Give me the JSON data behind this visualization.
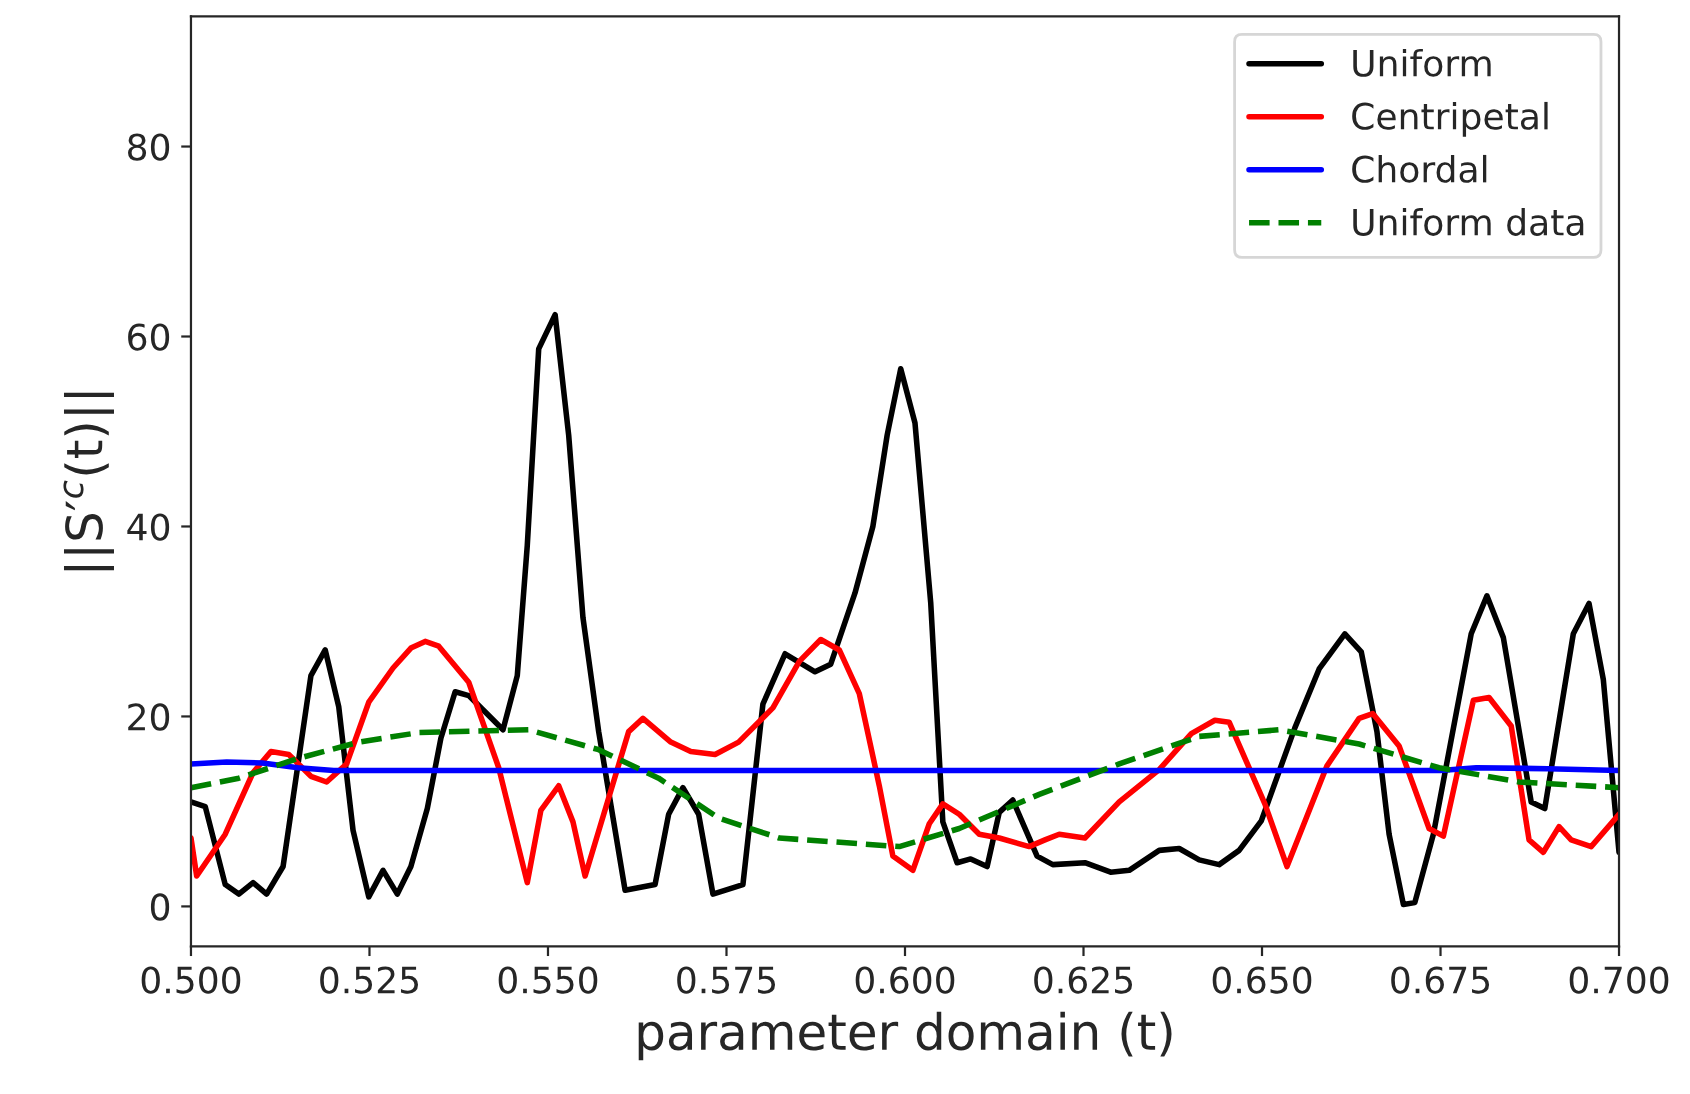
{
  "chart_data": {
    "type": "line",
    "xlabel": "parameter domain (t)",
    "ylabel": "||S′$^{c}$(t)||",
    "xlim": [
      0.5,
      0.7
    ],
    "ylim": [
      -4.2,
      93.7
    ],
    "xticks": [
      {
        "value": 0.5,
        "label": "0.500"
      },
      {
        "value": 0.525,
        "label": "0.525"
      },
      {
        "value": 0.55,
        "label": "0.550"
      },
      {
        "value": 0.575,
        "label": "0.575"
      },
      {
        "value": 0.6,
        "label": "0.600"
      },
      {
        "value": 0.625,
        "label": "0.625"
      },
      {
        "value": 0.65,
        "label": "0.650"
      },
      {
        "value": 0.675,
        "label": "0.675"
      },
      {
        "value": 0.7,
        "label": "0.700"
      }
    ],
    "yticks": [
      0,
      20,
      40,
      60,
      80
    ],
    "legend": "top right",
    "grid": false,
    "series": [
      {
        "name": "Uniform",
        "color": "#000000",
        "line_style": "solid",
        "x": [
          0.5,
          0.502,
          0.5048,
          0.5067,
          0.5087,
          0.5106,
          0.5129,
          0.5168,
          0.5188,
          0.5207,
          0.5227,
          0.5249,
          0.5269,
          0.5289,
          0.5308,
          0.5331,
          0.535,
          0.537,
          0.5389,
          0.5437,
          0.5457,
          0.5471,
          0.5487,
          0.551,
          0.5529,
          0.5549,
          0.5571,
          0.5608,
          0.565,
          0.5669,
          0.5689,
          0.5711,
          0.5731,
          0.5773,
          0.5801,
          0.5832,
          0.5874,
          0.5896,
          0.593,
          0.5955,
          0.5975,
          0.5994,
          0.6014,
          0.6036,
          0.6053,
          0.6073,
          0.6092,
          0.6115,
          0.6132,
          0.6151,
          0.6185,
          0.6207,
          0.6252,
          0.6288,
          0.6314,
          0.6356,
          0.6384,
          0.6412,
          0.644,
          0.6468,
          0.6499,
          0.6546,
          0.658,
          0.6616,
          0.6639,
          0.6661,
          0.6678,
          0.6698,
          0.6714,
          0.674,
          0.6793,
          0.6815,
          0.6838,
          0.6877,
          0.6896,
          0.6936,
          0.6958,
          0.6978,
          0.7
        ],
        "values": [
          11,
          10.5,
          2.3,
          1.3,
          2.5,
          1.3,
          4.2,
          24.3,
          27,
          21,
          8,
          1,
          3.8,
          1.3,
          4.2,
          10.3,
          17.7,
          22.6,
          22.2,
          18.6,
          24.3,
          38,
          58.7,
          62.3,
          49.6,
          30.4,
          18.4,
          1.7,
          2.3,
          9.7,
          12.5,
          9.7,
          1.3,
          2.3,
          21.3,
          26.6,
          24.7,
          25.5,
          33,
          40,
          49.6,
          56.6,
          50.9,
          32,
          8.9,
          4.6,
          5,
          4.2,
          9.9,
          11.2,
          5.3,
          4.4,
          4.6,
          3.6,
          3.8,
          5.9,
          6.1,
          4.9,
          4.4,
          5.9,
          9,
          18.8,
          25,
          28.7,
          26.8,
          18.4,
          7.6,
          0.2,
          0.4,
          7.6,
          28.7,
          32.7,
          28.3,
          11,
          10.3,
          28.7,
          31.9,
          23.9,
          5.7
        ]
      },
      {
        "name": "Centripetal",
        "color": "#ff0000",
        "line_style": "solid",
        "x": [
          0.5,
          0.5008,
          0.5048,
          0.5087,
          0.5112,
          0.5137,
          0.5168,
          0.519,
          0.5218,
          0.5249,
          0.5283,
          0.5308,
          0.5328,
          0.5347,
          0.5389,
          0.5431,
          0.5471,
          0.549,
          0.5515,
          0.5535,
          0.5552,
          0.5613,
          0.5633,
          0.5672,
          0.57,
          0.5734,
          0.5767,
          0.5815,
          0.5852,
          0.5882,
          0.5908,
          0.5936,
          0.5964,
          0.5983,
          0.6011,
          0.6034,
          0.6053,
          0.6076,
          0.6104,
          0.6132,
          0.6174,
          0.6196,
          0.6216,
          0.6252,
          0.63,
          0.6356,
          0.6401,
          0.6434,
          0.6454,
          0.6504,
          0.6535,
          0.6591,
          0.6636,
          0.6655,
          0.6692,
          0.6734,
          0.6754,
          0.6796,
          0.6818,
          0.6849,
          0.6874,
          0.6894,
          0.6916,
          0.6933,
          0.6961,
          0.7
        ],
        "values": [
          7.2,
          3.2,
          7.6,
          14.1,
          16.3,
          16,
          13.7,
          13.1,
          15,
          21.5,
          25.1,
          27.2,
          27.9,
          27.4,
          23.6,
          14.6,
          2.5,
          10.1,
          12.7,
          8.9,
          3.2,
          18.4,
          19.8,
          17.3,
          16.3,
          16,
          17.3,
          20.9,
          25.8,
          28.1,
          27,
          22.4,
          12.7,
          5.3,
          3.8,
          8.7,
          10.8,
          9.7,
          7.6,
          7.2,
          6.3,
          7,
          7.6,
          7.2,
          11,
          14.4,
          18.2,
          19.6,
          19.4,
          10.8,
          4.2,
          14.8,
          19.8,
          20.3,
          16.9,
          8.2,
          7.4,
          21.7,
          22,
          19,
          7,
          5.7,
          8.4,
          7,
          6.3,
          9.7
        ]
      },
      {
        "name": "Chordal",
        "color": "#0000ff",
        "line_style": "solid",
        "x": [
          0.5,
          0.505,
          0.51,
          0.515,
          0.52,
          0.6,
          0.675,
          0.68,
          0.69,
          0.7
        ],
        "values": [
          15.0,
          15.2,
          15.1,
          14.6,
          14.3,
          14.3,
          14.3,
          14.6,
          14.5,
          14.3
        ]
      },
      {
        "name": "Uniform data",
        "color": "#008000",
        "line_style": "dashed",
        "x": [
          0.5,
          0.5067,
          0.5151,
          0.5235,
          0.5319,
          0.5473,
          0.5571,
          0.5655,
          0.5739,
          0.5824,
          0.5992,
          0.6076,
          0.6188,
          0.63,
          0.6412,
          0.6524,
          0.6636,
          0.6748,
          0.686,
          0.7
        ],
        "values": [
          12.5,
          13.5,
          15.6,
          17.3,
          18.3,
          18.6,
          16.5,
          13.5,
          9.3,
          7.2,
          6.3,
          8.2,
          11.8,
          15,
          17.9,
          18.6,
          17.1,
          14.6,
          13.1,
          12.5
        ]
      }
    ]
  }
}
